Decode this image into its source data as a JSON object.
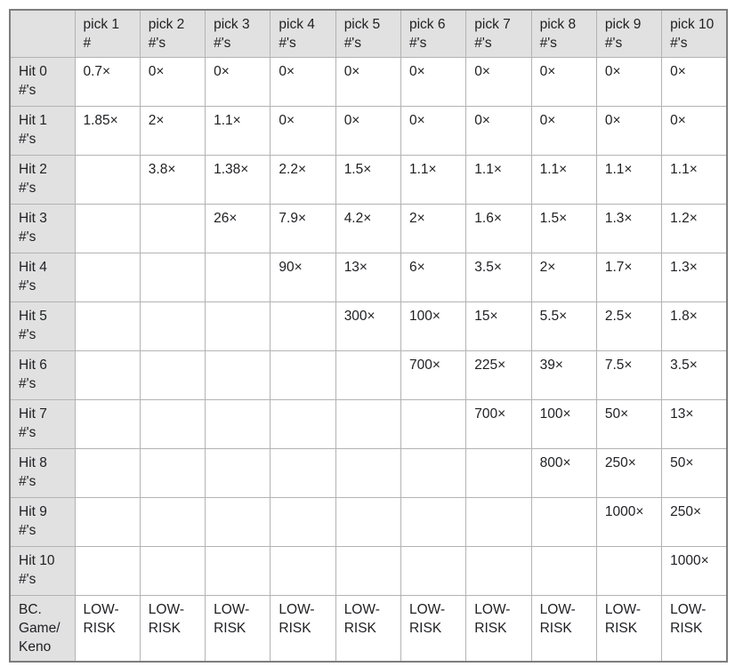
{
  "colors": {
    "header_bg": "#e1e1e1",
    "cell_bg": "#ffffff",
    "inner_border": "#b3b3b3",
    "outer_border": "#7d7d7d",
    "text": "#202124"
  },
  "table": {
    "corner": "",
    "col_headers": [
      "pick 1\n#",
      "pick 2\n#'s",
      "pick 3\n#'s",
      "pick 4\n#'s",
      "pick 5\n#'s",
      "pick 6\n#'s",
      "pick 7\n#'s",
      "pick 8\n#'s",
      "pick 9\n#'s",
      "pick 10\n#'s"
    ],
    "rows": [
      {
        "header": "Hit 0\n#'s",
        "cells": [
          "0.7×",
          "0×",
          "0×",
          "0×",
          "0×",
          "0×",
          "0×",
          "0×",
          "0×",
          "0×"
        ]
      },
      {
        "header": "Hit 1\n#'s",
        "cells": [
          "1.85×",
          "2×",
          "1.1×",
          "0×",
          "0×",
          "0×",
          "0×",
          "0×",
          "0×",
          "0×"
        ]
      },
      {
        "header": "Hit 2\n#'s",
        "cells": [
          "",
          "3.8×",
          "1.38×",
          "2.2×",
          "1.5×",
          "1.1×",
          "1.1×",
          "1.1×",
          "1.1×",
          "1.1×"
        ]
      },
      {
        "header": "Hit 3\n#'s",
        "cells": [
          "",
          "",
          "26×",
          "7.9×",
          "4.2×",
          "2×",
          "1.6×",
          "1.5×",
          "1.3×",
          "1.2×"
        ]
      },
      {
        "header": "Hit 4\n#'s",
        "cells": [
          "",
          "",
          "",
          "90×",
          "13×",
          "6×",
          "3.5×",
          "2×",
          "1.7×",
          "1.3×"
        ]
      },
      {
        "header": "Hit 5\n#'s",
        "cells": [
          "",
          "",
          "",
          "",
          "300×",
          "100×",
          "15×",
          "5.5×",
          "2.5×",
          "1.8×"
        ]
      },
      {
        "header": "Hit 6\n#'s",
        "cells": [
          "",
          "",
          "",
          "",
          "",
          "700×",
          "225×",
          "39×",
          "7.5×",
          "3.5×"
        ]
      },
      {
        "header": "Hit 7\n#'s",
        "cells": [
          "",
          "",
          "",
          "",
          "",
          "",
          "700×",
          "100×",
          "50×",
          "13×"
        ]
      },
      {
        "header": "Hit 8\n#'s",
        "cells": [
          "",
          "",
          "",
          "",
          "",
          "",
          "",
          "800×",
          "250×",
          "50×"
        ]
      },
      {
        "header": "Hit 9\n#'s",
        "cells": [
          "",
          "",
          "",
          "",
          "",
          "",
          "",
          "",
          "1000×",
          "250×"
        ]
      },
      {
        "header": "Hit 10\n#'s",
        "cells": [
          "",
          "",
          "",
          "",
          "",
          "",
          "",
          "",
          "",
          "1000×"
        ]
      },
      {
        "header": "BC.\nGame/\nKeno",
        "cells": [
          "LOW-\nRISK",
          "LOW-\nRISK",
          "LOW-\nRISK",
          "LOW-\nRISK",
          "LOW-\nRISK",
          "LOW-\nRISK",
          "LOW-\nRISK",
          "LOW-\nRISK",
          "LOW-\nRISK",
          "LOW-\nRISK"
        ]
      }
    ]
  }
}
